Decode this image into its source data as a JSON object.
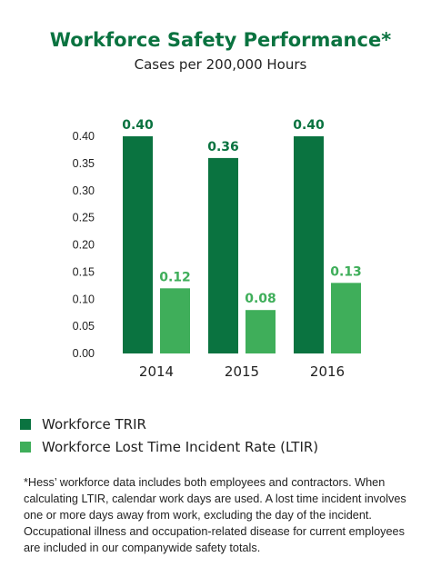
{
  "colors": {
    "primary": "#0a7340",
    "secondary": "#3fae5a",
    "title": "#0a7340"
  },
  "chart_data": {
    "type": "bar",
    "title": "Workforce Safety Performance*",
    "subtitle": "Cases per 200,000 Hours",
    "categories": [
      "2014",
      "2015",
      "2016"
    ],
    "series": [
      {
        "name": "Workforce TRIR",
        "values": [
          0.4,
          0.36,
          0.4
        ],
        "labels": [
          "0.40",
          "0.36",
          "0.40"
        ]
      },
      {
        "name": "Workforce Lost Time Incident Rate (LTIR)",
        "values": [
          0.12,
          0.08,
          0.13
        ],
        "labels": [
          "0.12",
          "0.08",
          "0.13"
        ]
      }
    ],
    "ylim": [
      0,
      0.4
    ],
    "yticks": [
      "0.00",
      "0.05",
      "0.10",
      "0.15",
      "0.20",
      "0.25",
      "0.30",
      "0.35",
      "0.40"
    ],
    "grid": false,
    "legend_position": "bottom-left"
  },
  "footnote": "*Hess’ workforce data includes both employees and contractors. When calculating LTIR, calendar work days are used. A lost time incident involves one or more days away from work, excluding the day of the incident. Occupational illness and occupation-related disease for current employees are included in our companywide safety totals."
}
